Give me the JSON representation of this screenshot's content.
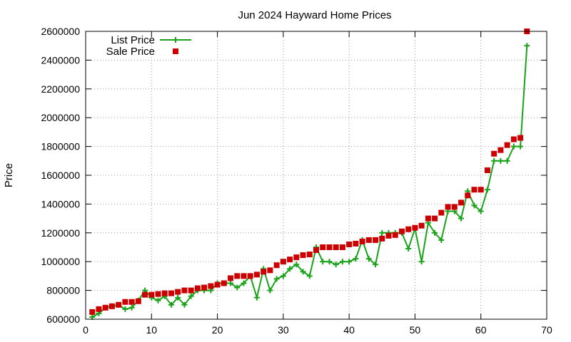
{
  "chart_data": {
    "type": "line",
    "title": "Jun 2024 Hayward Home Prices",
    "xlabel": "",
    "ylabel": "Price",
    "xlim": [
      0,
      70
    ],
    "ylim": [
      600000,
      2600000
    ],
    "xticks": [
      0,
      10,
      20,
      30,
      40,
      50,
      60,
      70
    ],
    "yticks": [
      600000,
      800000,
      1000000,
      1200000,
      1400000,
      1600000,
      1800000,
      2000000,
      2200000,
      2400000,
      2600000
    ],
    "grid": true,
    "legend_position": "top-left",
    "colors": {
      "list": "#1aa31a",
      "sale": "#cc0000"
    },
    "series": [
      {
        "name": "List Price",
        "style": "line-plus",
        "x": [
          1,
          2,
          3,
          4,
          5,
          6,
          7,
          8,
          9,
          10,
          11,
          12,
          13,
          14,
          15,
          16,
          17,
          18,
          19,
          20,
          21,
          22,
          23,
          24,
          25,
          26,
          27,
          28,
          29,
          30,
          31,
          32,
          33,
          34,
          35,
          36,
          37,
          38,
          39,
          40,
          41,
          42,
          43,
          44,
          45,
          46,
          47,
          48,
          49,
          50,
          51,
          52,
          53,
          54,
          55,
          56,
          57,
          58,
          59,
          60,
          61,
          62,
          63,
          64,
          65,
          66,
          67
        ],
        "values": [
          615000,
          640000,
          680000,
          690000,
          700000,
          670000,
          680000,
          730000,
          800000,
          750000,
          730000,
          760000,
          700000,
          750000,
          700000,
          760000,
          800000,
          800000,
          800000,
          850000,
          850000,
          850000,
          820000,
          850000,
          900000,
          750000,
          950000,
          800000,
          880000,
          900000,
          950000,
          980000,
          930000,
          900000,
          1100000,
          1000000,
          1000000,
          980000,
          1000000,
          1000000,
          1020000,
          1150000,
          1020000,
          980000,
          1200000,
          1200000,
          1200000,
          1200000,
          1090000,
          1230000,
          1000000,
          1270000,
          1200000,
          1150000,
          1350000,
          1350000,
          1300000,
          1490000,
          1390000,
          1350000,
          1500000,
          1700000,
          1700000,
          1700000,
          1800000,
          1800000,
          2500000
        ]
      },
      {
        "name": "Sale Price",
        "style": "square",
        "x": [
          1,
          2,
          3,
          4,
          5,
          6,
          7,
          8,
          9,
          10,
          11,
          12,
          13,
          14,
          15,
          16,
          17,
          18,
          19,
          20,
          21,
          22,
          23,
          24,
          25,
          26,
          27,
          28,
          29,
          30,
          31,
          32,
          33,
          34,
          35,
          36,
          37,
          38,
          39,
          40,
          41,
          42,
          43,
          44,
          45,
          46,
          47,
          48,
          49,
          50,
          51,
          52,
          53,
          54,
          55,
          56,
          57,
          58,
          59,
          60,
          61,
          62,
          63,
          64,
          65,
          66,
          67
        ],
        "values": [
          650000,
          670000,
          680000,
          690000,
          700000,
          720000,
          720000,
          725000,
          770000,
          770000,
          775000,
          780000,
          780000,
          790000,
          800000,
          800000,
          815000,
          820000,
          830000,
          840000,
          850000,
          885000,
          900000,
          900000,
          900000,
          910000,
          930000,
          940000,
          975000,
          1000000,
          1015000,
          1030000,
          1045000,
          1050000,
          1080000,
          1100000,
          1100000,
          1100000,
          1100000,
          1120000,
          1125000,
          1140000,
          1150000,
          1150000,
          1160000,
          1180000,
          1185000,
          1210000,
          1225000,
          1235000,
          1250000,
          1300000,
          1300000,
          1340000,
          1380000,
          1380000,
          1410000,
          1460000,
          1500000,
          1500000,
          1635000,
          1750000,
          1775000,
          1810000,
          1850000,
          1860000,
          2600000
        ]
      }
    ]
  }
}
